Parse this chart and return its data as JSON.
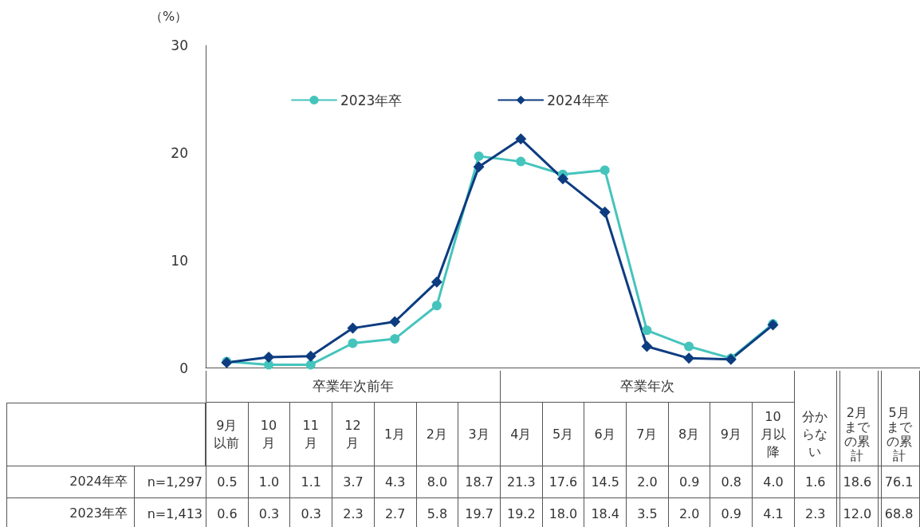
{
  "chart_data": {
    "type": "line",
    "ylabel": "（%）",
    "categories": [
      "9月以前",
      "10月",
      "11月",
      "12月",
      "1月",
      "2月",
      "3月",
      "4月",
      "5月",
      "6月",
      "7月",
      "8月",
      "9月",
      "10月以降",
      "分からない",
      "2月までの累計",
      "5月までの累計"
    ],
    "series": [
      {
        "name": "2023年卒",
        "color": "#45c4bc",
        "marker": "circle",
        "values": [
          0.6,
          0.3,
          0.3,
          2.3,
          2.7,
          5.8,
          19.7,
          19.2,
          18.0,
          18.4,
          3.5,
          2.0,
          0.9,
          4.1,
          null,
          null,
          null
        ],
        "value_labels": [
          "0.6",
          "0.3",
          "0.3",
          "2.3",
          "2.7",
          "5.8",
          "19.7",
          "19.2",
          "18.0",
          "18.4",
          "3.5",
          "2.0",
          "0.9",
          "4.1",
          "2.3",
          "12.0",
          "68.8"
        ]
      },
      {
        "name": "2024年卒",
        "color": "#0d3c80",
        "marker": "diamond",
        "values": [
          0.5,
          1.0,
          1.1,
          3.7,
          4.3,
          8.0,
          18.7,
          21.3,
          17.6,
          14.5,
          2.0,
          0.9,
          0.8,
          4.0,
          null,
          null,
          null
        ],
        "value_labels": [
          "0.5",
          "1.0",
          "1.1",
          "3.7",
          "4.3",
          "8.0",
          "18.7",
          "21.3",
          "17.6",
          "14.5",
          "2.0",
          "0.9",
          "0.8",
          "4.0",
          "1.6",
          "18.6",
          "76.1"
        ]
      }
    ],
    "annotations": [
      "卒業年次前年",
      "卒業年次",
      "n=1,413",
      "n=1,297"
    ],
    "ylim": [
      0,
      30
    ],
    "yticks": [
      0,
      10,
      20,
      30
    ],
    "grid": false,
    "legend": "top",
    "line_style": "solid"
  }
}
